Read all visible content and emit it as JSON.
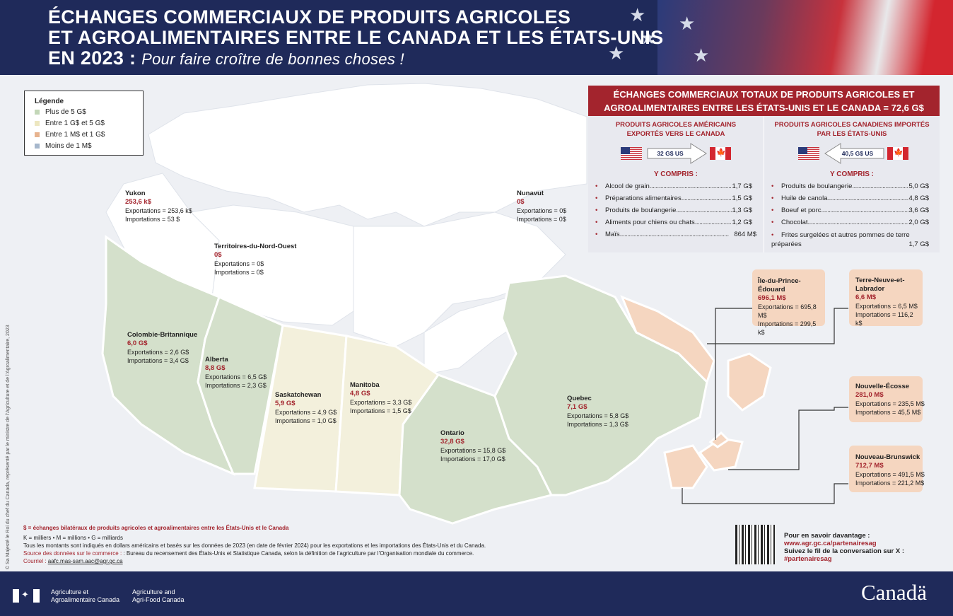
{
  "header": {
    "title_line1": "ÉCHANGES COMMERCIAUX DE PRODUITS AGRICOLES",
    "title_line2": "ET AGROALIMENTAIRES ENTRE LE CANADA ET LES ÉTATS-UNIS",
    "title_line3_bold": "EN 2023 :",
    "title_line3_italic": "Pour faire croître de bonnes choses !"
  },
  "legend": {
    "title": "Légende",
    "items": [
      {
        "label": "Plus de 5 G$",
        "color": "#c3d7b8"
      },
      {
        "label": "Entre 1 G$ et 5 G$",
        "color": "#ede7c0"
      },
      {
        "label": "Entre 1 M$ et 1 G$",
        "color": "#e7b38e"
      },
      {
        "label": "Moins de 1 M$",
        "color": "#a6b7cc"
      }
    ]
  },
  "colors": {
    "navy": "#1f2a5a",
    "accent_red": "#a3242d",
    "land_default": "#ffffff",
    "green": "#d4e0cb",
    "cream": "#f3f0dc",
    "peach": "#f5d6c0"
  },
  "provinces": [
    {
      "id": "yukon",
      "name": "Yukon",
      "total": "253,6 k$",
      "exports": "Exportations = 253,6 k$",
      "imports": "Importations = 53 $"
    },
    {
      "id": "nwt",
      "name": "Territoires-du-Nord-Ouest",
      "total": "0$",
      "exports": "Exportations = 0$",
      "imports": "Importations = 0$"
    },
    {
      "id": "nunavut",
      "name": "Nunavut",
      "total": "0$",
      "exports": "Exportations = 0$",
      "imports": "Importations = 0$"
    },
    {
      "id": "bc",
      "name": "Colombie-Britannique",
      "total": "6,0 G$",
      "exports": "Exportations = 2,6 G$",
      "imports": "Importations = 3,4 G$"
    },
    {
      "id": "ab",
      "name": "Alberta",
      "total": "8,8 G$",
      "exports": "Exportations = 6,5 G$",
      "imports": "Importations = 2,3 G$"
    },
    {
      "id": "sk",
      "name": "Saskatchewan",
      "total": "5,9 G$",
      "exports": "Exportations = 4,9 G$",
      "imports": "Importations = 1,0 G$"
    },
    {
      "id": "mb",
      "name": "Manitoba",
      "total": "4,8 G$",
      "exports": "Exportations = 3,3 G$",
      "imports": "Importations = 1,5 G$"
    },
    {
      "id": "on",
      "name": "Ontario",
      "total": "32,8 G$",
      "exports": "Exportations = 15,8 G$",
      "imports": "Importations = 17,0 G$"
    },
    {
      "id": "qc",
      "name": "Quebec",
      "total": "7,1 G$",
      "exports": "Exportations = 5,8 G$",
      "imports": "Importations = 1,3 G$"
    },
    {
      "id": "pe",
      "name": "Île-du-Prince-Édouard",
      "total": "696,1 M$",
      "exports": "Exportations = 695,8 M$",
      "imports": "Importations = 299,5 k$"
    },
    {
      "id": "nl",
      "name": "Terre-Neuve-et-Labrador",
      "total": "6,6 M$",
      "exports": "Exportations = 6,5 M$",
      "imports": "Importations = 116,2 k$"
    },
    {
      "id": "ns",
      "name": "Nouvelle-Écosse",
      "total": "281,0 M$",
      "exports": "Exportations = 235,5 M$",
      "imports": "Importations = 45,5 M$"
    },
    {
      "id": "nb",
      "name": "Nouveau-Brunswick",
      "total": "712,7 M$",
      "exports": "Exportations = 491,5 M$",
      "imports": "Importations = 221,2 M$"
    }
  ],
  "panel": {
    "title": "ÉCHANGES COMMERCIAUX TOTAUX DE PRODUITS AGRICOLES ET AGROALIMENTAIRES ENTRE LES ÉTATS-UNIS ET LE CANADA = 72,6 G$",
    "left": {
      "heading": "PRODUITS AGRICOLES AMÉRICAINS EXPORTÉS VERS LE CANADA",
      "arrow_label": "32 G$ US",
      "including": "Y COMPRIS :",
      "items": [
        {
          "label": "Alcool de grain",
          "value": "1,7 G$"
        },
        {
          "label": "Préparations alimentaires",
          "value": "1,5 G$"
        },
        {
          "label": "Produits de boulangerie",
          "value": "1,3 G$"
        },
        {
          "label": "Aliments pour chiens ou chats",
          "value": "1,2 G$"
        },
        {
          "label": "Maïs",
          "value": "864 M$"
        }
      ]
    },
    "right": {
      "heading": "PRODUITS AGRICOLES CANADIENS IMPORTÉS PAR LES ÉTATS-UNIS",
      "arrow_label": "40,5 G$ US",
      "including": "Y COMPRIS :",
      "items": [
        {
          "label": "Produits de boulangerie",
          "value": "5,0 G$"
        },
        {
          "label": "Huile de canola",
          "value": "4,8 G$"
        },
        {
          "label": "Boeuf et porc",
          "value": "3,6 G$"
        },
        {
          "label": "Chocolat",
          "value": "2,0 G$"
        },
        {
          "label": "Frites surgelées et autres pommes de terre préparées",
          "value": "1,7 G$"
        }
      ]
    }
  },
  "footnotes": {
    "line1": "$ = échanges bilatéraux de produits agricoles et agroalimentaires entre les États-Unis et le Canada",
    "line2": "K = milliers • M = millions • G = milliards",
    "line3": "Tous les montants sont indiqués en dollars américains et basés sur les données de 2023 (en date de février 2024) pour les exportations et les importations des États-Unis et du Canada.",
    "line4_label": "Source des données sur le commerce :",
    "line4_text": ": Bureau du recensement des États-Unis et Statistique Canada, selon la définition de l’agriculture par l’Organisation mondiale du commerce.",
    "line5_label": "Courriel :",
    "line5_email": "aafc.mas-sam.aac@agr.gc.ca"
  },
  "learn_more": {
    "line1": "Pour en savoir davantage :",
    "url": "www.agr.gc.ca/partenairesag",
    "line3": "Suivez le fil de la conversation sur X :",
    "hashtag": "#partenairesag"
  },
  "credit_vertical": "© Sa Majesté le Roi du chef du Canada, représenté par le ministre de l’Agriculture et de l’Agroalimentaire, 2023",
  "footer": {
    "dept_fr_1": "Agriculture et",
    "dept_fr_2": "Agroalimentaire Canada",
    "dept_en_1": "Agriculture and",
    "dept_en_2": "Agri-Food Canada",
    "wordmark": "Canadä"
  }
}
